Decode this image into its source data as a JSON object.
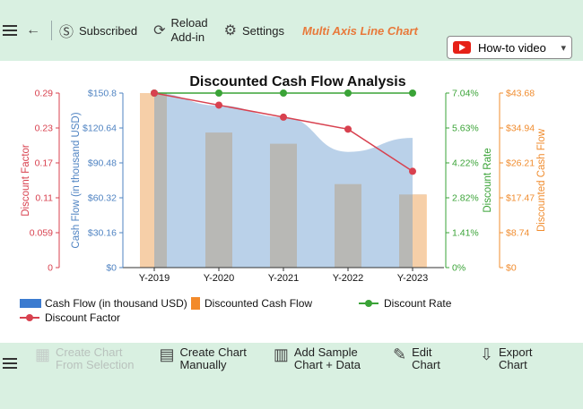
{
  "toolbar_top": {
    "subscribed": "Subscribed",
    "reload_line1": "Reload",
    "reload_line2": "Add-in",
    "settings": "Settings",
    "brand": "Multi Axis Line Chart",
    "video": "How-to video"
  },
  "toolbar_bottom": {
    "create_selection_1": "Create Chart",
    "create_selection_2": "From Selection",
    "create_manual_1": "Create Chart",
    "create_manual_2": "Manually",
    "sample_1": "Add Sample",
    "sample_2": "Chart + Data",
    "edit_1": "Edit",
    "edit_2": "Chart",
    "export_1": "Export",
    "export_2": "Chart"
  },
  "colors": {
    "cash": "#a9c6e4",
    "discounted": "#fdd2a6",
    "rate": "#3aa337",
    "factor": "#d8414f",
    "bars": "#b8b8b5",
    "cash_axis": "#4f83c2",
    "disc_axis": "#f08c2e"
  },
  "chart_data": {
    "type": "line",
    "title": "Discounted Cash Flow Analysis",
    "categories": [
      "Y-2019",
      "Y-2020",
      "Y-2021",
      "Y-2022",
      "Y-2023"
    ],
    "series": [
      {
        "name": "Cash Flow (in thousand USD)",
        "kind": "area",
        "axis": "cash",
        "values": [
          150.8,
          140.0,
          130.0,
          100.0,
          112.0
        ]
      },
      {
        "name": "Discounted Cash Flow",
        "kind": "bar",
        "axis": "discounted",
        "values": [
          43.68,
          33.8,
          31.0,
          20.9,
          18.3
        ]
      },
      {
        "name": "Discount Rate",
        "kind": "line",
        "axis": "rate",
        "values": [
          7.04,
          7.04,
          7.04,
          7.04,
          7.04
        ]
      },
      {
        "name": "Discount Factor",
        "kind": "line",
        "axis": "factor",
        "values": [
          0.29,
          0.27,
          0.25,
          0.23,
          0.16
        ]
      }
    ],
    "axes": {
      "factor": {
        "label": "Discount Factor",
        "ticks": [
          "0",
          "0.059",
          "0.11",
          "0.17",
          "0.23",
          "0.29"
        ],
        "range": [
          0,
          0.29
        ]
      },
      "cash": {
        "label": "Cash Flow (in thousand USD)",
        "ticks": [
          "$0",
          "$30.16",
          "$60.32",
          "$90.48",
          "$120.64",
          "$150.8"
        ],
        "range": [
          0,
          150.8
        ]
      },
      "rate": {
        "label": "Discount Rate",
        "ticks": [
          "0%",
          "1.41%",
          "2.82%",
          "4.22%",
          "5.63%",
          "7.04%"
        ],
        "range": [
          0,
          7.04
        ]
      },
      "discounted": {
        "label": "Discounted Cash Flow",
        "ticks": [
          "$0",
          "$8.74",
          "$17.47",
          "$26.21",
          "$34.94",
          "$43.68"
        ],
        "range": [
          0,
          43.68
        ]
      }
    },
    "legend_position": "bottom-left",
    "grid": false
  }
}
